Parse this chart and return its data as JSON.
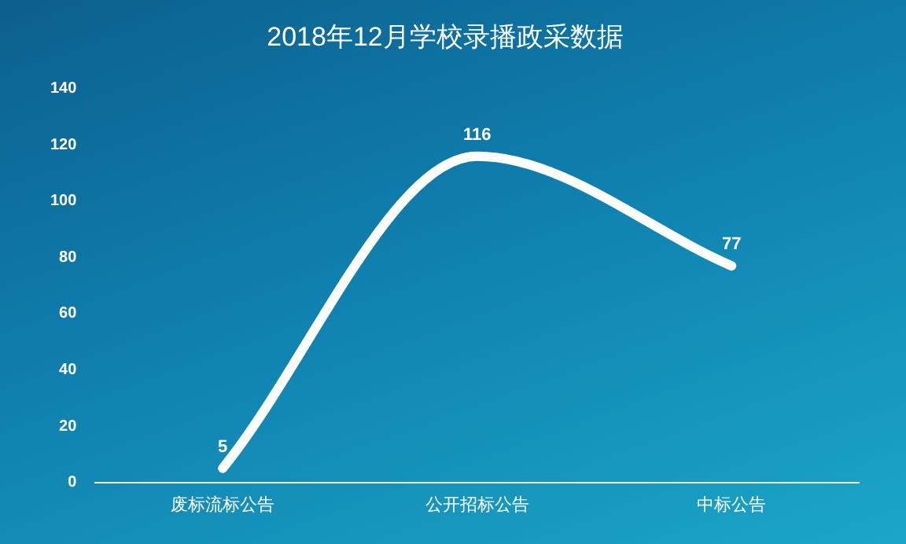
{
  "chart_data": {
    "type": "line",
    "title": "2018年12月学校录播政采数据",
    "categories": [
      "废标流标公告",
      "公开招标公告",
      "中标公告"
    ],
    "series": [
      {
        "color": "#ffffff",
        "values": [
          5,
          116,
          77
        ]
      }
    ],
    "ylim": [
      0,
      140
    ],
    "yticks": [
      0,
      20,
      40,
      60,
      80,
      100,
      120,
      140
    ],
    "grid": false,
    "legend": false,
    "marker": "none",
    "line_style": "solid",
    "data_labels": true
  }
}
